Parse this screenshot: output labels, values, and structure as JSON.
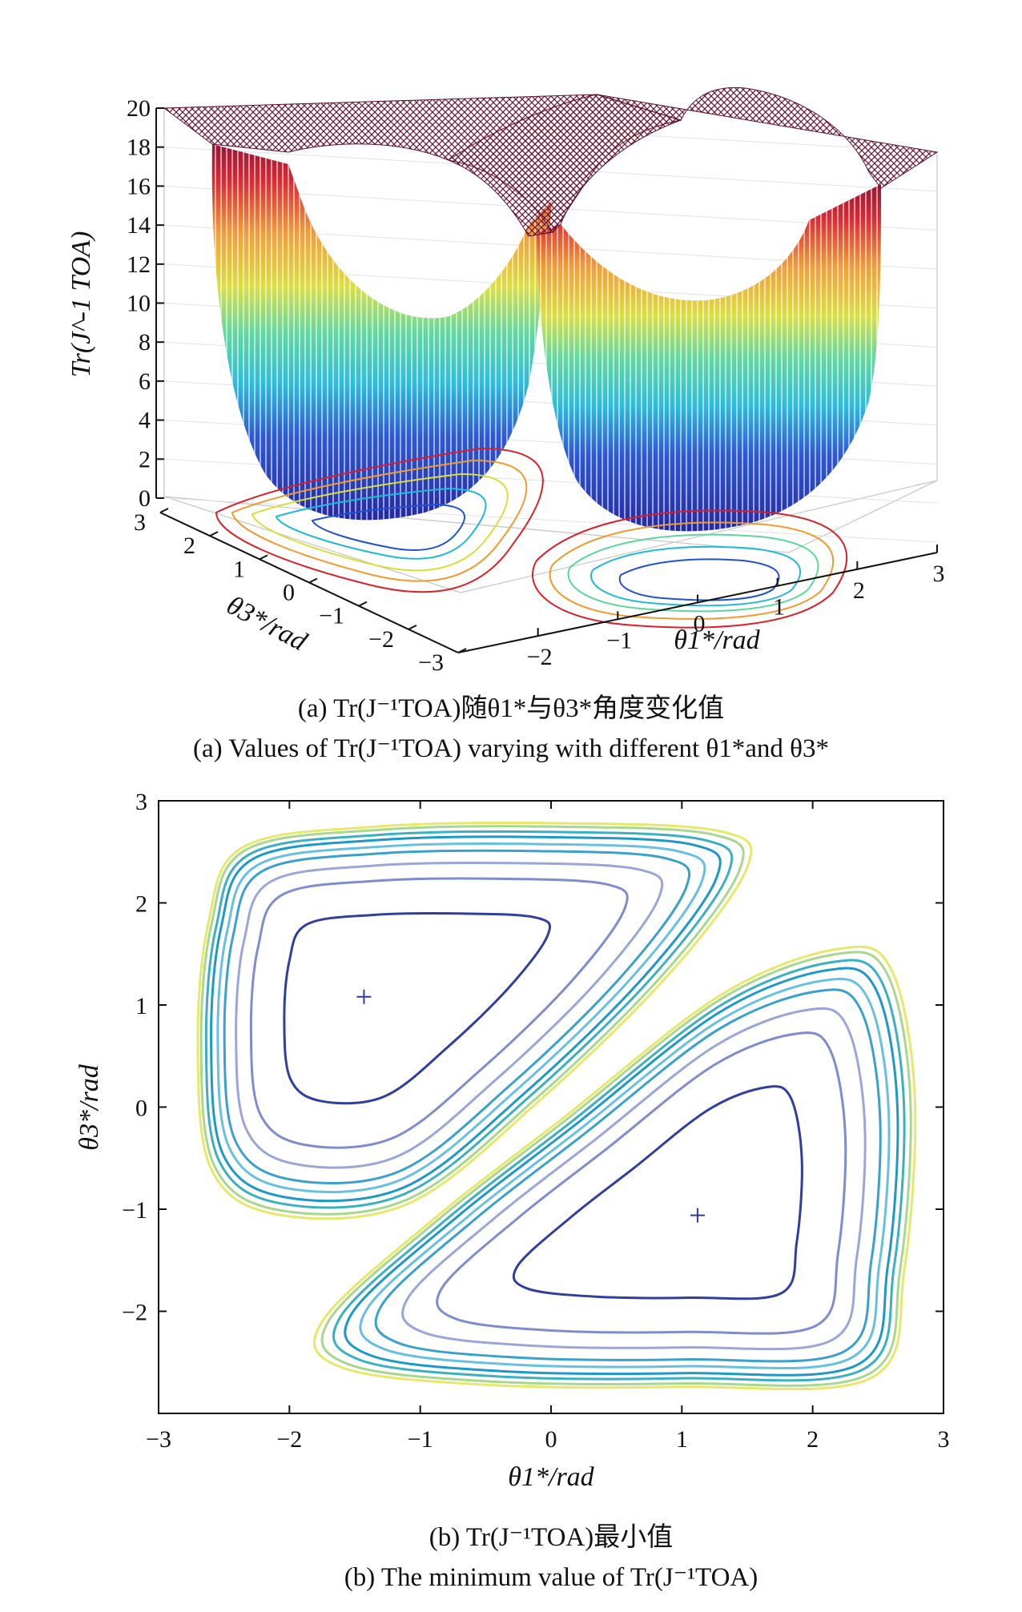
{
  "chart_data": [
    {
      "type": "surface",
      "panel": "a",
      "zlabel": "Tr(J^-1 TOA)",
      "ylabel": "θ3*/rad",
      "xlabel": "θ1*/rad",
      "z_ticks": [
        "0",
        "2",
        "4",
        "6",
        "8",
        "10",
        "12",
        "14",
        "16",
        "18",
        "20"
      ],
      "zlim": [
        0,
        20
      ],
      "x_ticks": [
        "−2",
        "−1",
        "0",
        "1",
        "2",
        "3"
      ],
      "y_ticks": [
        "3",
        "2",
        "1",
        "0",
        "−1",
        "−2",
        "−3"
      ],
      "xlim": [
        -3,
        3
      ],
      "ylim": [
        -3,
        3
      ],
      "minima": [
        {
          "x": -1.43,
          "y": 1.08
        },
        {
          "x": 1.12,
          "y": -1.06
        }
      ],
      "colormap": "jet",
      "caption_cn": "(a) Tr(J⁻¹TOA)随θ1*与θ3*角度变化值",
      "caption_en": "(a) Values of Tr(J⁻¹TOA) varying with different θ1*and θ3*"
    },
    {
      "type": "contour",
      "panel": "b",
      "xlabel": "θ1*/rad",
      "ylabel": "θ3*/rad",
      "xlim": [
        -3,
        3
      ],
      "ylim": [
        -3,
        3
      ],
      "x_ticks": [
        "−3",
        "−2",
        "−1",
        "0",
        "1",
        "2",
        "3"
      ],
      "y_ticks": [
        "3",
        "2",
        "1",
        "0",
        "−1",
        "−2"
      ],
      "minima": [
        {
          "x": -1.43,
          "y": 1.08
        },
        {
          "x": 1.12,
          "y": -1.06
        }
      ],
      "contour_colors": [
        "#303e9e",
        "#7f8ccd",
        "#9aa6d8",
        "#3aa0cc",
        "#68c0e0",
        "#1e98c8",
        "#3cb0c0",
        "#a8d890",
        "#e6e86a"
      ],
      "caption_cn": "(b) Tr(J⁻¹TOA)最小值",
      "caption_en": "(b) The minimum value of Tr(J⁻¹TOA)"
    }
  ]
}
